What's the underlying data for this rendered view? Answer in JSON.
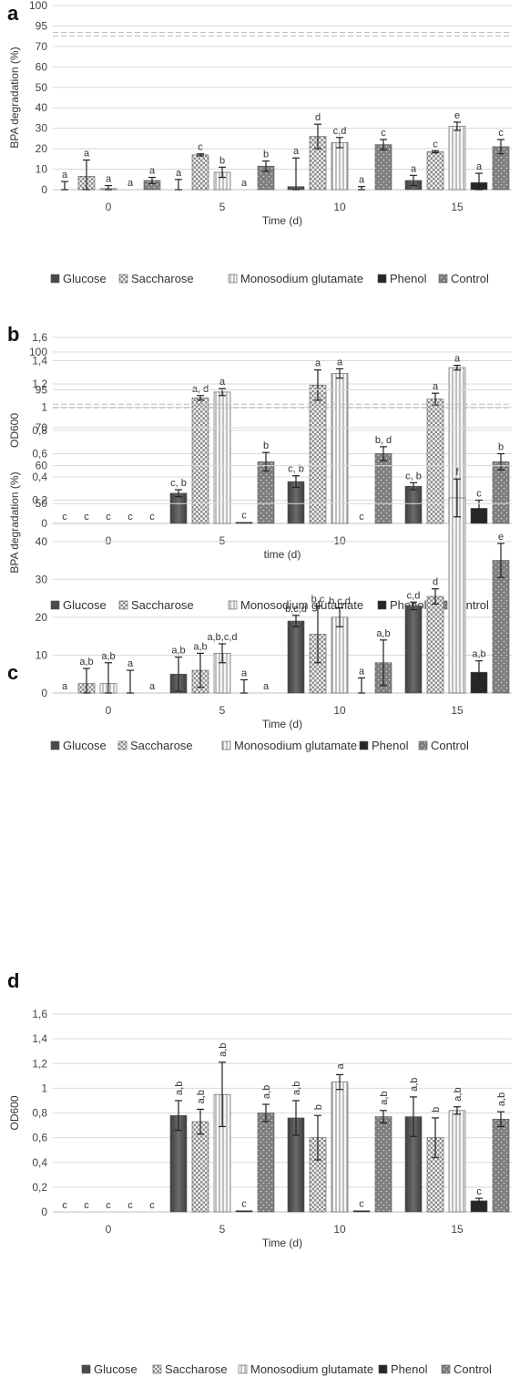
{
  "legend": [
    "Glucose",
    "Saccharose",
    "Monosodium glutamate",
    "Phenol",
    "Control"
  ],
  "colors": {
    "Glucose": "#5a5a5a",
    "Saccharose": "#dcdcdc",
    "Monosodium glutamate": "#f2f2f2",
    "Phenol": "#262626",
    "Control": "#8a8a8a"
  },
  "chart_data": [
    {
      "panel": "a",
      "type": "bar",
      "xlabel": "Time (d)",
      "ylabel": "BPA degradation (%)",
      "categories": [
        "0",
        "5",
        "10",
        "15"
      ],
      "y_ticks": [
        "0",
        "10",
        "20",
        "30",
        "40",
        "50",
        "60",
        "70",
        "95",
        "100"
      ],
      "y_scale": "broken: 0-70 linear, 95-100 above break",
      "series": [
        {
          "name": "Glucose",
          "values": [
            0,
            0,
            1.5,
            4.5
          ],
          "errors": [
            4,
            5,
            14,
            2.5
          ],
          "labels": [
            "a",
            "a",
            "a",
            "a"
          ]
        },
        {
          "name": "Saccharose",
          "values": [
            6.5,
            17,
            26,
            18.5
          ],
          "errors": [
            8,
            0.5,
            6,
            0.5
          ],
          "labels": [
            "a",
            "c",
            "d",
            "c"
          ]
        },
        {
          "name": "Monosodium glutamate",
          "values": [
            0.5,
            8.5,
            23,
            31
          ],
          "errors": [
            1.5,
            2.5,
            2.5,
            2
          ],
          "labels": [
            "a",
            "b",
            "c,d",
            "e"
          ]
        },
        {
          "name": "Phenol",
          "values": [
            0,
            0,
            0,
            3.5
          ],
          "errors": [
            0,
            0,
            1.5,
            4.5
          ],
          "labels": [
            "a",
            "a",
            "a",
            "a"
          ]
        },
        {
          "name": "Control",
          "values": [
            4.5,
            11.5,
            22,
            21
          ],
          "errors": [
            1.5,
            2.5,
            2.5,
            3.5
          ],
          "labels": [
            "a",
            "b",
            "c",
            "c"
          ]
        }
      ]
    },
    {
      "panel": "b",
      "type": "bar",
      "xlabel": "time (d)",
      "ylabel": "OD600",
      "categories": [
        "0",
        "5",
        "10",
        "15"
      ],
      "y_ticks": [
        "0",
        "0,2",
        "0,4",
        "0,6",
        "0,8",
        "1",
        "1,2",
        "1,4",
        "1,6"
      ],
      "ylim": [
        0,
        1.6
      ],
      "series": [
        {
          "name": "Glucose",
          "values": [
            0,
            0.26,
            0.36,
            0.32
          ],
          "errors": [
            0,
            0.03,
            0.05,
            0.03
          ],
          "labels": [
            "c",
            "c, b",
            "c, b",
            "c, b"
          ]
        },
        {
          "name": "Saccharose",
          "values": [
            0,
            1.08,
            1.19,
            1.07
          ],
          "errors": [
            0,
            0.02,
            0.13,
            0.05
          ],
          "labels": [
            "c",
            "a, d",
            "a",
            "a"
          ]
        },
        {
          "name": "Monosodium glutamate",
          "values": [
            0,
            1.13,
            1.29,
            1.34
          ],
          "errors": [
            0,
            0.03,
            0.04,
            0.02
          ],
          "labels": [
            "c",
            "a",
            "a",
            "a"
          ]
        },
        {
          "name": "Phenol",
          "values": [
            0,
            0.01,
            0,
            0.13
          ],
          "errors": [
            0,
            0,
            0,
            0.07
          ],
          "labels": [
            "c",
            "c",
            "c",
            "c"
          ]
        },
        {
          "name": "Control",
          "values": [
            0,
            0.53,
            0.6,
            0.53
          ],
          "errors": [
            0,
            0.08,
            0.06,
            0.07
          ],
          "labels": [
            "c",
            "b",
            "b, d",
            "b"
          ]
        }
      ]
    },
    {
      "panel": "c",
      "type": "bar",
      "xlabel": "Time (d)",
      "ylabel": "BPA degradation (%)",
      "categories": [
        "0",
        "5",
        "10",
        "15"
      ],
      "y_ticks": [
        "0",
        "10",
        "20",
        "30",
        "40",
        "50",
        "60",
        "70",
        "95",
        "100"
      ],
      "y_scale": "broken: 0-70 linear, 95-100 above break",
      "series": [
        {
          "name": "Glucose",
          "values": [
            0,
            5,
            19,
            23
          ],
          "errors": [
            0,
            4.5,
            1.5,
            1
          ],
          "labels": [
            "a",
            "a,b",
            "b,c,d",
            "c,d"
          ]
        },
        {
          "name": "Saccharose",
          "values": [
            2.5,
            6,
            15.5,
            25.5
          ],
          "errors": [
            4,
            4.5,
            7.5,
            2
          ],
          "labels": [
            "a,b",
            "a,b",
            "b,c",
            "d"
          ]
        },
        {
          "name": "Monosodium glutamate",
          "values": [
            2.5,
            10.5,
            20,
            51.5
          ],
          "errors": [
            5.5,
            2.5,
            2.5,
            5
          ],
          "labels": [
            "a,b",
            "a,b,c,d",
            "b,c,d",
            "f"
          ]
        },
        {
          "name": "Phenol",
          "values": [
            0,
            0,
            0,
            5.5
          ],
          "errors": [
            6,
            3.5,
            4,
            3
          ],
          "labels": [
            "a",
            "a",
            "a",
            "a,b"
          ]
        },
        {
          "name": "Control",
          "values": [
            0,
            0,
            8,
            35
          ],
          "errors": [
            0,
            0,
            6,
            4.5
          ],
          "labels": [
            "a",
            "a",
            "a,b",
            "e"
          ]
        }
      ]
    },
    {
      "panel": "d",
      "type": "bar",
      "xlabel": "Time (d)",
      "ylabel": "OD600",
      "categories": [
        "0",
        "5",
        "10",
        "15"
      ],
      "y_ticks": [
        "0",
        "0,2",
        "0,4",
        "0,6",
        "0,8",
        "1",
        "1,2",
        "1,4",
        "1,6"
      ],
      "ylim": [
        0,
        1.6
      ],
      "series": [
        {
          "name": "Glucose",
          "values": [
            0,
            0.78,
            0.76,
            0.77
          ],
          "errors": [
            0,
            0.12,
            0.14,
            0.16
          ],
          "labels": [
            "c",
            "a,b",
            "a,b",
            "a,b"
          ]
        },
        {
          "name": "Saccharose",
          "values": [
            0,
            0.73,
            0.6,
            0.6
          ],
          "errors": [
            0,
            0.1,
            0.18,
            0.16
          ],
          "labels": [
            "c",
            "a,b",
            "b",
            "b"
          ]
        },
        {
          "name": "Monosodium glutamate",
          "values": [
            0,
            0.95,
            1.05,
            0.82
          ],
          "errors": [
            0,
            0.26,
            0.06,
            0.03
          ],
          "labels": [
            "c",
            "a,b",
            "a",
            "a,b"
          ]
        },
        {
          "name": "Phenol",
          "values": [
            0,
            0.01,
            0.01,
            0.09
          ],
          "errors": [
            0,
            0,
            0,
            0.02
          ],
          "labels": [
            "c",
            "c",
            "c",
            "c"
          ]
        },
        {
          "name": "Control",
          "values": [
            0,
            0.8,
            0.77,
            0.75
          ],
          "errors": [
            0,
            0.07,
            0.05,
            0.06
          ],
          "labels": [
            "c",
            "a,b",
            "a,b",
            "a,b"
          ]
        }
      ]
    }
  ]
}
